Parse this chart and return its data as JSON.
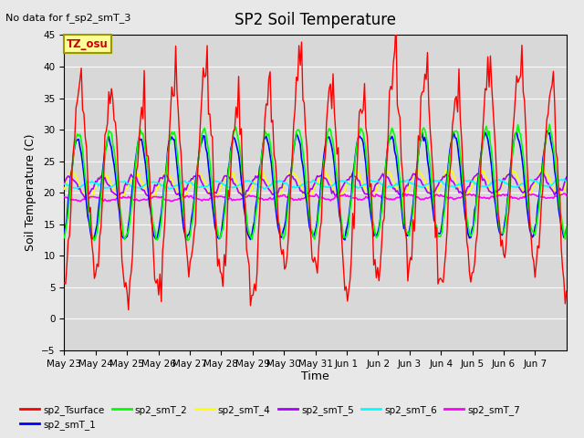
{
  "title": "SP2 Soil Temperature",
  "subtitle": "No data for f_sp2_smT_3",
  "xlabel": "Time",
  "ylabel": "Soil Temperature (C)",
  "ylim": [
    -5,
    45
  ],
  "yticks": [
    -5,
    0,
    5,
    10,
    15,
    20,
    25,
    30,
    35,
    40,
    45
  ],
  "background_color": "#e8e8e8",
  "plot_bg_color": "#d8d8d8",
  "tz_label": "TZ_osu",
  "tz_bg": "#ffff99",
  "tz_border": "#999900",
  "series_colors": {
    "sp2_Tsurface": "#ff0000",
    "sp2_smT_1": "#0000ff",
    "sp2_smT_2": "#00ff00",
    "sp2_smT_4": "#ffff00",
    "sp2_smT_5": "#aa00ff",
    "sp2_smT_6": "#00ffff",
    "sp2_smT_7": "#ff00ff"
  },
  "x_tick_labels": [
    "May 23",
    "May 24",
    "May 25",
    "May 26",
    "May 27",
    "May 28",
    "May 29",
    "May 30",
    "May 31",
    "Jun 1",
    "Jun 2",
    "Jun 3",
    "Jun 4",
    "Jun 5",
    "Jun 6",
    "Jun 7"
  ],
  "n_days": 16
}
